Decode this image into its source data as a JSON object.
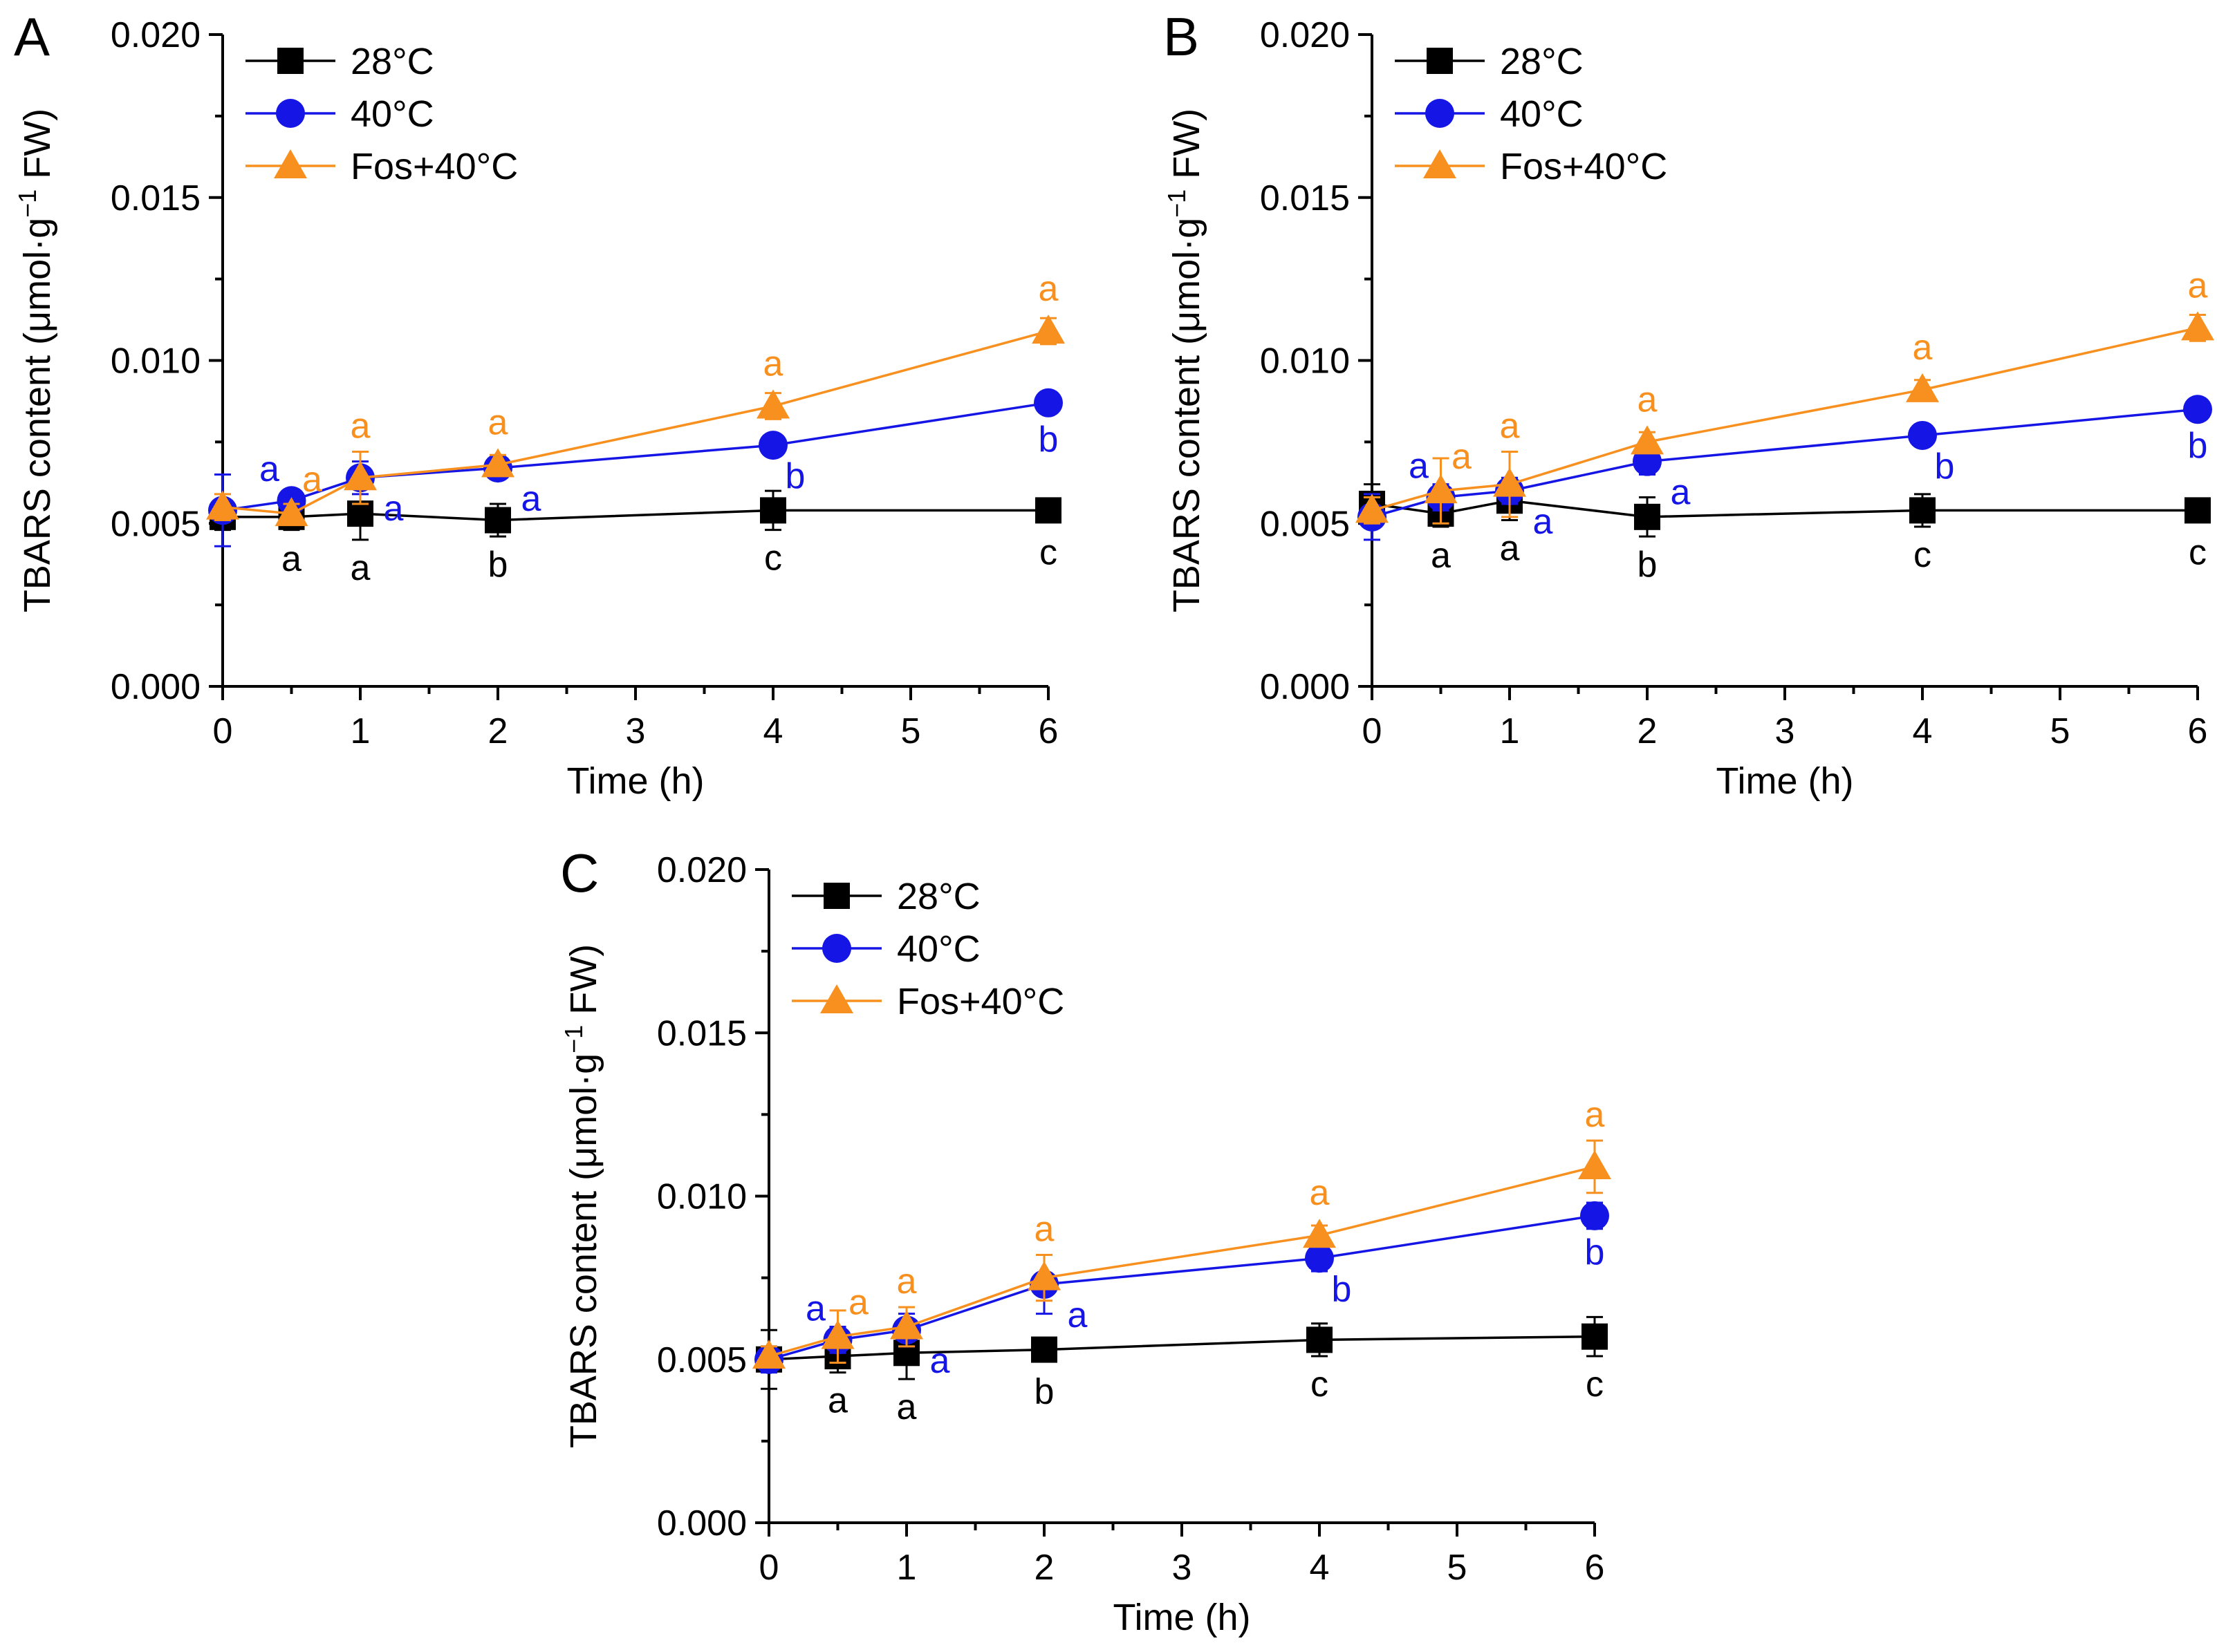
{
  "chart_data": [
    {
      "panel": "A",
      "type": "line",
      "xlabel": "Time (h)",
      "ylabel": "TBARS content (μmol·g",
      "ylabel_sup": "−1",
      "ylabel_end": " FW)",
      "xlim": [
        0,
        6
      ],
      "ylim": [
        0,
        0.02
      ],
      "xticks": [
        "0",
        "1",
        "2",
        "3",
        "4",
        "5",
        "6"
      ],
      "yticks": [
        "0.000",
        "0.005",
        "0.010",
        "0.015",
        "0.020"
      ],
      "x": [
        0,
        0.5,
        1,
        2,
        4,
        6
      ],
      "series": [
        {
          "name": "28°C",
          "color": "#000000",
          "marker": "square",
          "values": [
            0.0052,
            0.0052,
            0.0053,
            0.0051,
            0.0054,
            0.0054
          ],
          "errors": [
            0.0004,
            0.0004,
            0.0008,
            0.0005,
            0.0006,
            0.0002
          ],
          "letters": [
            "",
            "a",
            "a",
            "b",
            "c",
            "c"
          ]
        },
        {
          "name": "40°C",
          "color": "#1515e6",
          "marker": "circle",
          "values": [
            0.0054,
            0.0057,
            0.0064,
            0.0067,
            0.0074,
            0.0087
          ],
          "errors": [
            0.0011,
            0.0003,
            0.0005,
            0.0003,
            0.0002,
            0.0003
          ],
          "letters": [
            "",
            "a",
            "a",
            "a",
            "b",
            "b"
          ]
        },
        {
          "name": "Fos+40°C",
          "color": "#f7901e",
          "marker": "triangle",
          "values": [
            0.0055,
            0.0053,
            0.0064,
            0.0068,
            0.0086,
            0.0109
          ],
          "errors": [
            0.0004,
            0.0003,
            0.0008,
            0.0003,
            0.0004,
            0.0004
          ],
          "letters": [
            "",
            "a",
            "a",
            "a",
            "a",
            "a"
          ]
        }
      ]
    },
    {
      "panel": "B",
      "type": "line",
      "xlabel": "Time (h)",
      "ylabel": "TBARS content (μmol·g",
      "ylabel_sup": "−1",
      "ylabel_end": " FW)",
      "xlim": [
        0,
        6
      ],
      "ylim": [
        0,
        0.02
      ],
      "xticks": [
        "0",
        "1",
        "2",
        "3",
        "4",
        "5",
        "6"
      ],
      "yticks": [
        "0.000",
        "0.005",
        "0.010",
        "0.015",
        "0.020"
      ],
      "x": [
        0,
        0.5,
        1,
        2,
        4,
        6
      ],
      "series": [
        {
          "name": "28°C",
          "color": "#000000",
          "marker": "square",
          "values": [
            0.0056,
            0.0053,
            0.0057,
            0.0052,
            0.0054,
            0.0054
          ],
          "errors": [
            0.0006,
            0.0004,
            0.0006,
            0.0006,
            0.0005,
            0.0002
          ],
          "letters": [
            "",
            "a",
            "a",
            "b",
            "c",
            "c"
          ]
        },
        {
          "name": "40°C",
          "color": "#1515e6",
          "marker": "circle",
          "values": [
            0.0052,
            0.0058,
            0.006,
            0.0069,
            0.0077,
            0.0085
          ],
          "errors": [
            0.0007,
            0.0004,
            0.0004,
            0.0004,
            0.0002,
            0.0002
          ],
          "letters": [
            "",
            "a",
            "a",
            "a",
            "b",
            "b"
          ]
        },
        {
          "name": "Fos+40°C",
          "color": "#f7901e",
          "marker": "triangle",
          "values": [
            0.0054,
            0.006,
            0.0062,
            0.0075,
            0.0091,
            0.011
          ],
          "errors": [
            0.0004,
            0.001,
            0.001,
            0.0003,
            0.0003,
            0.0004
          ],
          "letters": [
            "",
            "a",
            "a",
            "a",
            "a",
            "a"
          ]
        }
      ]
    },
    {
      "panel": "C",
      "type": "line",
      "xlabel": "Time (h)",
      "ylabel": "TBARS content (μmol·g",
      "ylabel_sup": "−1",
      "ylabel_end": " FW)",
      "xlim": [
        0,
        6
      ],
      "ylim": [
        0,
        0.02
      ],
      "xticks": [
        "0",
        "1",
        "2",
        "3",
        "4",
        "5",
        "6"
      ],
      "yticks": [
        "0.000",
        "0.005",
        "0.010",
        "0.015",
        "0.020"
      ],
      "x": [
        0,
        0.5,
        1,
        2,
        4,
        6
      ],
      "series": [
        {
          "name": "28°C",
          "color": "#000000",
          "marker": "square",
          "values": [
            0.005,
            0.0051,
            0.0052,
            0.0053,
            0.0056,
            0.0057
          ],
          "errors": [
            0.0009,
            0.0005,
            0.0008,
            0.0002,
            0.0005,
            0.0006
          ],
          "letters": [
            "",
            "a",
            "a",
            "b",
            "c",
            "c"
          ]
        },
        {
          "name": "40°C",
          "color": "#1515e6",
          "marker": "circle",
          "values": [
            0.005,
            0.0056,
            0.0059,
            0.0073,
            0.0081,
            0.0094
          ],
          "errors": [
            0.0004,
            0.0004,
            0.0005,
            0.0009,
            0.0004,
            0.0004
          ],
          "letters": [
            "",
            "a",
            "a",
            "a",
            "b",
            "b"
          ]
        },
        {
          "name": "Fos+40°C",
          "color": "#f7901e",
          "marker": "triangle",
          "values": [
            0.0051,
            0.0057,
            0.006,
            0.0075,
            0.0088,
            0.0109
          ],
          "errors": [
            0.0003,
            0.0008,
            0.0006,
            0.0007,
            0.0003,
            0.0008
          ],
          "letters": [
            "",
            "a",
            "a",
            "a",
            "a",
            "a"
          ]
        }
      ]
    }
  ]
}
